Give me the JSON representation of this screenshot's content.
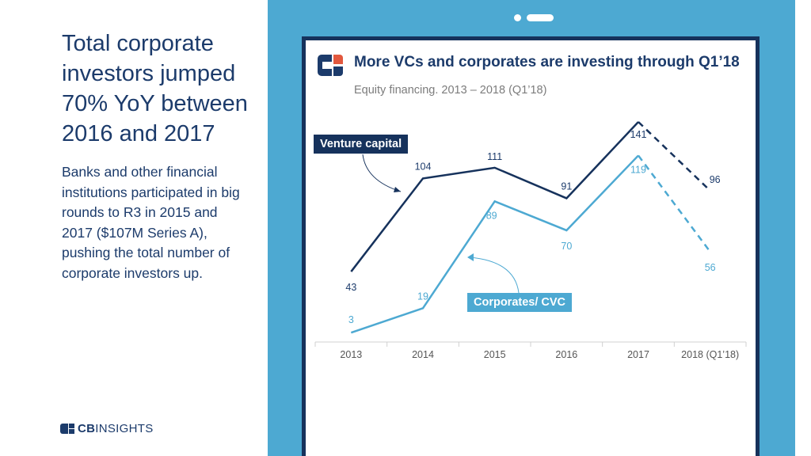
{
  "slide": {
    "headline": "Total corporate investors jumped 70% YoY between 2016 and 2017",
    "body": "Banks and other financial institutions participated in big rounds to R3 in 2015 and 2017 ($107M Series A), pushing the total number of corporate investors up.",
    "brand": {
      "bold": "CB",
      "light": "INSIGHTS"
    }
  },
  "colors": {
    "navy": "#16325c",
    "light_blue": "#4da9d2",
    "accent_orange": "#e2583e",
    "axis_text": "#7c7c7c"
  },
  "chart_data": {
    "type": "line",
    "title": "More VCs and corporates are investing through Q1’18",
    "subtitle": "Equity financing. 2013 – 2018 (Q1’18)",
    "categories": [
      "2013",
      "2014",
      "2015",
      "2016",
      "2017",
      "2018 (Q1’18)"
    ],
    "series": [
      {
        "name": "Venture capital",
        "values": [
          43,
          104,
          111,
          91,
          141,
          96
        ],
        "color": "#16325c",
        "last_segment_dashed": true
      },
      {
        "name": "Corporates/ CVC",
        "values": [
          3,
          19,
          89,
          70,
          119,
          56
        ],
        "color": "#4da9d2",
        "last_segment_dashed": true
      }
    ],
    "ylim": [
      0,
      150
    ],
    "grid": false,
    "legend": "callout labels on lines"
  }
}
